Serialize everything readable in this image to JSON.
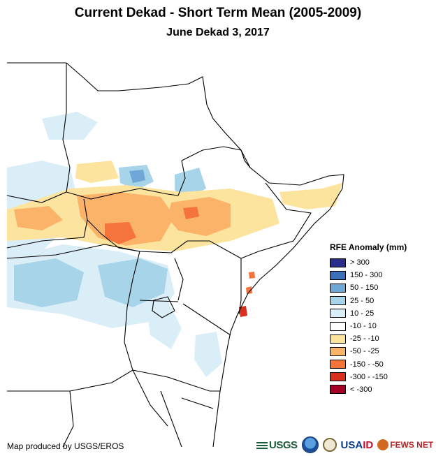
{
  "title": "Current Dekad - Short Term Mean (2005-2009)",
  "subtitle": "June Dekad 3, 2017",
  "legend": {
    "title": "RFE Anomaly (mm)",
    "items": [
      {
        "label": "> 300",
        "color": "#2a2c8c"
      },
      {
        "label": "150 - 300",
        "color": "#3d6fb8"
      },
      {
        "label": "50 - 150",
        "color": "#6fa8d6"
      },
      {
        "label": "25 - 50",
        "color": "#a8d4ea"
      },
      {
        "label": "10 - 25",
        "color": "#daeef7"
      },
      {
        "label": "-10 - 10",
        "color": "#ffffff"
      },
      {
        "label": "-25 - -10",
        "color": "#fde49e"
      },
      {
        "label": "-50 - -25",
        "color": "#fbb36a"
      },
      {
        "label": "-150 - -50",
        "color": "#f4743c"
      },
      {
        "label": "-300 - -150",
        "color": "#d7301f"
      },
      {
        "label": "< -300",
        "color": "#a50026"
      }
    ]
  },
  "credit": "Map produced by USGS/EROS",
  "logos": {
    "usgs": "USGS",
    "usaid_a": "USA",
    "usaid_b": "ID",
    "fews": "FEWS NET"
  }
}
